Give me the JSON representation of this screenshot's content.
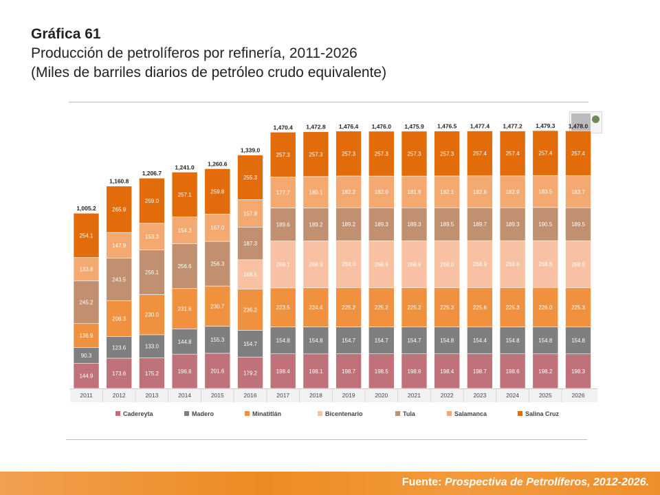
{
  "heading": {
    "number": "Gráfica 61",
    "title": "Producción de petrolíferos por refinería, 2011-2026",
    "subtitle": "(Miles de barriles diarios de petróleo crudo equivalente)"
  },
  "footer": {
    "label": "Fuente:",
    "source": "Prospectiva de Petrolíferos, 2012-2026."
  },
  "logo": {
    "name": "sener-logo"
  },
  "chart_data": {
    "type": "bar",
    "stacked": true,
    "categories": [
      "2011",
      "2012",
      "2013",
      "2014",
      "2015",
      "2016",
      "2017",
      "2018",
      "2019",
      "2020",
      "2021",
      "2022",
      "2023",
      "2024",
      "2025",
      "2026"
    ],
    "totals": [
      "1,005.2",
      "1,160.8",
      "1,206.7",
      "1,241.0",
      "1,260.6",
      "1,339.0",
      "1,470.4",
      "1,472.8",
      "1,476.4",
      "1,476.0",
      "1,475.9",
      "1,476.5",
      "1,477.4",
      "1,477.2",
      "1,479.3",
      "1,478.0"
    ],
    "series": [
      {
        "name": "Cadereyta",
        "color": "#c0727b",
        "values": [
          144.9,
          173.6,
          175.2,
          196.6,
          201.6,
          179.2,
          198.4,
          198.1,
          198.7,
          198.5,
          198.6,
          198.4,
          198.7,
          198.6,
          198.2,
          198.3
        ]
      },
      {
        "name": "Madero",
        "color": "#7f7f7f",
        "values": [
          90.3,
          123.6,
          133.0,
          144.8,
          155.3,
          154.7,
          154.8,
          154.8,
          154.7,
          154.7,
          154.7,
          154.8,
          154.4,
          154.8,
          154.8,
          154.8
        ]
      },
      {
        "name": "Minatitlán",
        "color": "#f0913f",
        "values": [
          136.9,
          206.3,
          230.0,
          231.6,
          230.7,
          236.2,
          223.5,
          224.4,
          225.2,
          225.2,
          225.2,
          225.3,
          225.6,
          225.3,
          226.0,
          225.3
        ]
      },
      {
        "name": "Bicentenario",
        "color": "#f8c1a3",
        "values": [
          0,
          0,
          0,
          0,
          0,
          168.5,
          269.1,
          268.9,
          269.0,
          268.8,
          268.8,
          269.0,
          268.9,
          268.8,
          268.8,
          268.9
        ]
      },
      {
        "name": "Tula",
        "color": "#c09070",
        "values": [
          245.2,
          243.5,
          256.1,
          256.6,
          256.3,
          187.3,
          189.6,
          189.2,
          189.2,
          189.3,
          189.3,
          189.5,
          189.7,
          189.3,
          190.5,
          189.5
        ]
      },
      {
        "name": "Salamanca",
        "color": "#f4a970",
        "values": [
          133.8,
          147.9,
          153.3,
          154.3,
          157.0,
          157.9,
          177.7,
          180.1,
          182.2,
          182.0,
          181.9,
          182.1,
          182.6,
          182.9,
          183.5,
          183.7
        ]
      },
      {
        "name": "Salina Cruz",
        "color": "#e36c0a",
        "values": [
          254.1,
          265.9,
          259.0,
          257.1,
          259.8,
          255.3,
          257.3,
          257.3,
          257.3,
          257.3,
          257.3,
          257.3,
          257.4,
          257.4,
          257.4,
          257.4
        ]
      }
    ],
    "legend_position": "bottom",
    "grid": false
  }
}
